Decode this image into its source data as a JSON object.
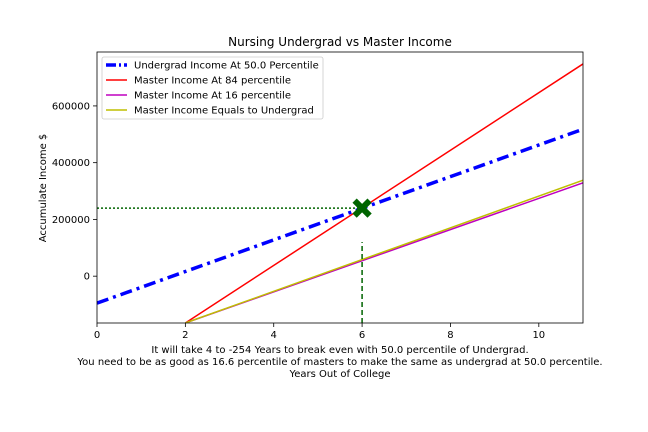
{
  "chart_data": {
    "type": "line",
    "title": "Nursing Undergrad vs Master Income",
    "xlabel_lines": [
      "It will take 4 to -254 Years to break even with 50.0 percentile of Undergrad.",
      "You need to be as good as 16.6 percentile of masters to make the same as undergrad at 50.0 percentile.",
      "Years Out of College"
    ],
    "ylabel": "Accumulate Income $",
    "xlim": [
      0,
      11
    ],
    "ylim": [
      -165000,
      790000
    ],
    "xticks": [
      0,
      2,
      4,
      6,
      8,
      10
    ],
    "xtick_labels": [
      "0",
      "2",
      "4",
      "6",
      "8",
      "10"
    ],
    "yticks": [
      0,
      200000,
      400000,
      600000
    ],
    "ytick_labels": [
      "0",
      "200000",
      "400000",
      "600000"
    ],
    "grid": false,
    "legend_position": "top-left",
    "series": [
      {
        "name": "Undergrad Income At 50.0 Percentile",
        "color": "#0000ff",
        "style": "dashdot",
        "x": [
          0,
          11
        ],
        "y": [
          -95000,
          518000
        ]
      },
      {
        "name": "Master Income At 84 percentile",
        "color": "#ff0000",
        "style": "solid",
        "x": [
          2,
          11
        ],
        "y": [
          -165000,
          748000
        ]
      },
      {
        "name": "Master Income At 16 percentile",
        "color": "#bf00bf",
        "style": "solid",
        "x": [
          2,
          11
        ],
        "y": [
          -165000,
          329000
        ]
      },
      {
        "name": "Master Income Equals to Undergrad",
        "color": "#bfbf00",
        "style": "solid",
        "x": [
          2,
          11
        ],
        "y": [
          -165000,
          338000
        ]
      }
    ],
    "annotations": {
      "breakeven_marker": {
        "x": 6,
        "y": 240000,
        "color": "#006400",
        "shape": "X"
      },
      "hline": {
        "y": 240000,
        "x_from": 0,
        "x_to": 6,
        "color": "#006400",
        "style": "dotted"
      },
      "vline": {
        "x": 6,
        "y_from": -165000,
        "y_to": 120000,
        "color": "#006400",
        "style": "dashed"
      }
    }
  }
}
